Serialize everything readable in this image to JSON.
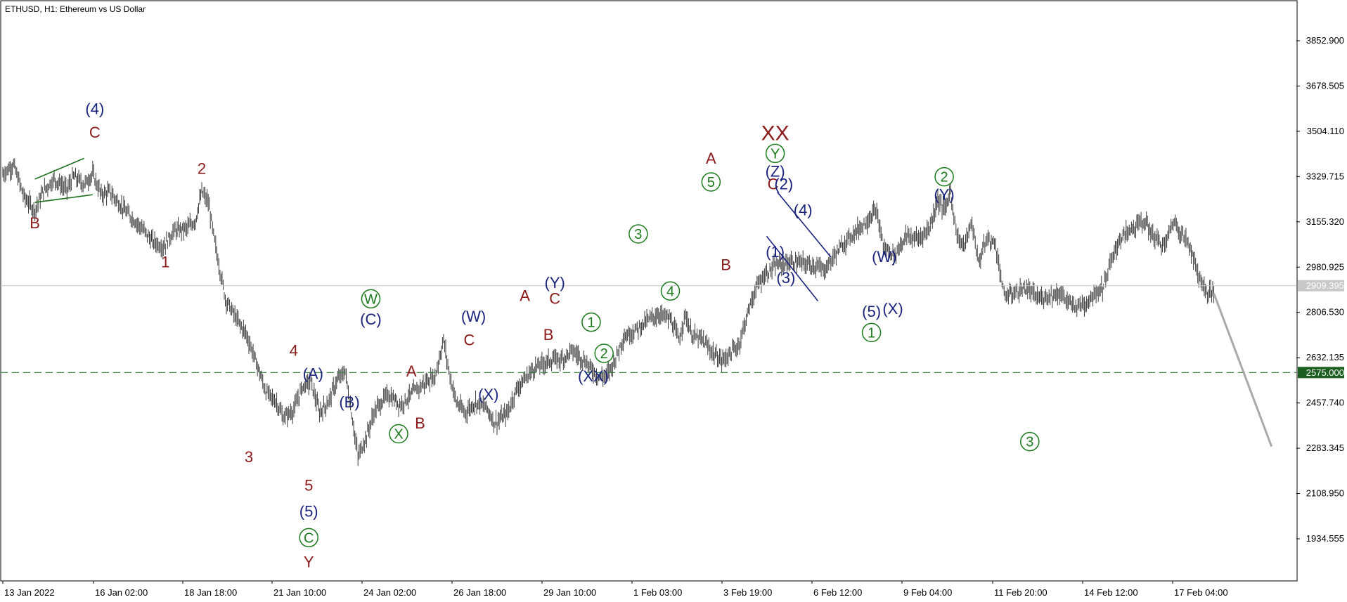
{
  "chart_data": {
    "type": "candlestick",
    "title": "ETHUSD, H1:  Ethereum vs US Dollar",
    "y_ticks": [
      "3852.900",
      "3678.505",
      "3504.110",
      "3329.715",
      "3155.320",
      "2980.925",
      "2806.530",
      "2632.135",
      "2457.740",
      "2283.345",
      "2108.950",
      "1934.555"
    ],
    "ylim": [
      1760,
      3990
    ],
    "x_ticks": [
      "13 Jan 2022",
      "16 Jan 02:00",
      "18 Jan 18:00",
      "21 Jan 10:00",
      "24 Jan 02:00",
      "26 Jan 18:00",
      "29 Jan 10:00",
      "1 Feb 03:00",
      "3 Feb 19:00",
      "6 Feb 12:00",
      "9 Feb 04:00",
      "11 Feb 20:00",
      "14 Feb 12:00",
      "17 Feb 04:00"
    ],
    "current_price": {
      "label": "2909.395",
      "value": 2909.395
    },
    "level_line": {
      "label": "2575.000",
      "value": 2575.0
    },
    "price_path": [
      [
        0,
        3340
      ],
      [
        5,
        3375
      ],
      [
        10,
        3250
      ],
      [
        15,
        3200
      ],
      [
        19,
        3275
      ],
      [
        24,
        3320
      ],
      [
        30,
        3280
      ],
      [
        33,
        3330
      ],
      [
        38,
        3300
      ],
      [
        42,
        3340
      ],
      [
        46,
        3260
      ],
      [
        50,
        3270
      ],
      [
        58,
        3190
      ],
      [
        64,
        3140
      ],
      [
        70,
        3080
      ],
      [
        75,
        3060
      ],
      [
        80,
        3120
      ],
      [
        86,
        3130
      ],
      [
        90,
        3160
      ],
      [
        93,
        3270
      ],
      [
        96,
        3230
      ],
      [
        99,
        3080
      ],
      [
        104,
        2860
      ],
      [
        110,
        2770
      ],
      [
        114,
        2720
      ],
      [
        119,
        2600
      ],
      [
        123,
        2500
      ],
      [
        128,
        2460
      ],
      [
        131,
        2400
      ],
      [
        136,
        2430
      ],
      [
        140,
        2520
      ],
      [
        144,
        2540
      ],
      [
        148,
        2420
      ],
      [
        152,
        2460
      ],
      [
        156,
        2540
      ],
      [
        160,
        2580
      ],
      [
        163,
        2420
      ],
      [
        166,
        2250
      ],
      [
        170,
        2330
      ],
      [
        174,
        2430
      ],
      [
        180,
        2490
      ],
      [
        186,
        2450
      ],
      [
        192,
        2500
      ],
      [
        198,
        2540
      ],
      [
        202,
        2560
      ],
      [
        206,
        2700
      ],
      [
        209,
        2560
      ],
      [
        212,
        2460
      ],
      [
        216,
        2420
      ],
      [
        221,
        2460
      ],
      [
        226,
        2440
      ],
      [
        230,
        2380
      ],
      [
        236,
        2420
      ],
      [
        240,
        2510
      ],
      [
        248,
        2590
      ],
      [
        255,
        2620
      ],
      [
        262,
        2630
      ],
      [
        266,
        2660
      ],
      [
        272,
        2620
      ],
      [
        278,
        2560
      ],
      [
        282,
        2560
      ],
      [
        286,
        2620
      ],
      [
        290,
        2710
      ],
      [
        296,
        2740
      ],
      [
        302,
        2780
      ],
      [
        307,
        2800
      ],
      [
        312,
        2780
      ],
      [
        316,
        2700
      ],
      [
        319,
        2800
      ],
      [
        322,
        2720
      ],
      [
        327,
        2700
      ],
      [
        332,
        2650
      ],
      [
        336,
        2620
      ],
      [
        340,
        2650
      ],
      [
        344,
        2680
      ],
      [
        348,
        2800
      ],
      [
        352,
        2900
      ],
      [
        356,
        2950
      ],
      [
        362,
        2990
      ],
      [
        370,
        3000
      ],
      [
        378,
        2990
      ],
      [
        384,
        2970
      ],
      [
        390,
        3040
      ],
      [
        396,
        3100
      ],
      [
        403,
        3150
      ],
      [
        408,
        3200
      ],
      [
        412,
        3050
      ],
      [
        417,
        3030
      ],
      [
        422,
        3100
      ],
      [
        428,
        3090
      ],
      [
        433,
        3130
      ],
      [
        437,
        3240
      ],
      [
        440,
        3200
      ],
      [
        443,
        3270
      ],
      [
        446,
        3100
      ],
      [
        449,
        3060
      ],
      [
        453,
        3150
      ],
      [
        456,
        3000
      ],
      [
        460,
        3090
      ],
      [
        464,
        3070
      ],
      [
        468,
        2870
      ],
      [
        473,
        2880
      ],
      [
        478,
        2900
      ],
      [
        484,
        2860
      ],
      [
        488,
        2870
      ],
      [
        494,
        2880
      ],
      [
        500,
        2830
      ],
      [
        506,
        2840
      ],
      [
        510,
        2880
      ],
      [
        514,
        2900
      ],
      [
        518,
        3000
      ],
      [
        522,
        3090
      ],
      [
        528,
        3130
      ],
      [
        533,
        3160
      ],
      [
        538,
        3100
      ],
      [
        543,
        3060
      ],
      [
        547,
        3160
      ],
      [
        551,
        3110
      ],
      [
        555,
        3060
      ],
      [
        558,
        2970
      ],
      [
        562,
        2890
      ],
      [
        566,
        2880
      ]
    ],
    "forecast_line": {
      "from": [
        566,
        2880
      ],
      "to": [
        593,
        2290
      ]
    },
    "wave_labels": [
      {
        "text": "B",
        "t": 15,
        "p": 3130,
        "color": "#8b1a1a"
      },
      {
        "text": "(4)",
        "t": 43,
        "p": 3570,
        "color": "#1a237e"
      },
      {
        "text": "C",
        "t": 43,
        "p": 3480,
        "color": "#8b1a1a"
      },
      {
        "text": "2",
        "t": 93,
        "p": 3340,
        "color": "#8b1a1a"
      },
      {
        "text": "1",
        "t": 76,
        "p": 2980,
        "color": "#8b1a1a"
      },
      {
        "text": "3",
        "t": 115,
        "p": 2230,
        "color": "#8b1a1a"
      },
      {
        "text": "4",
        "t": 136,
        "p": 2640,
        "color": "#8b1a1a"
      },
      {
        "text": "5",
        "t": 143,
        "p": 2120,
        "color": "#8b1a1a"
      },
      {
        "text": "(5)",
        "t": 143,
        "p": 2020,
        "color": "#1a237e"
      },
      {
        "text": "C",
        "t": 143,
        "p": 1920,
        "color": "#1b7a1b",
        "circle": true
      },
      {
        "text": "Y",
        "t": 143,
        "p": 1825,
        "color": "#8b1a1a"
      },
      {
        "text": "(A)",
        "t": 145,
        "p": 2550,
        "color": "#1a237e"
      },
      {
        "text": "(B)",
        "t": 162,
        "p": 2440,
        "color": "#1a237e"
      },
      {
        "text": "W",
        "t": 172,
        "p": 2840,
        "color": "#1b7a1b",
        "circle": true
      },
      {
        "text": "(C)",
        "t": 172,
        "p": 2760,
        "color": "#1a237e"
      },
      {
        "text": "X",
        "t": 185,
        "p": 2320,
        "color": "#1b7a1b",
        "circle": true
      },
      {
        "text": "A",
        "t": 191,
        "p": 2560,
        "color": "#8b1a1a"
      },
      {
        "text": "B",
        "t": 195,
        "p": 2360,
        "color": "#8b1a1a"
      },
      {
        "text": "(W)",
        "t": 220,
        "p": 2770,
        "color": "#1a237e"
      },
      {
        "text": "C",
        "t": 218,
        "p": 2680,
        "color": "#8b1a1a"
      },
      {
        "text": "(X)",
        "t": 227,
        "p": 2470,
        "color": "#1a237e"
      },
      {
        "text": "A",
        "t": 244,
        "p": 2850,
        "color": "#8b1a1a"
      },
      {
        "text": "(Y)",
        "t": 258,
        "p": 2900,
        "color": "#1a237e"
      },
      {
        "text": "C",
        "t": 258,
        "p": 2840,
        "color": "#8b1a1a"
      },
      {
        "text": "B",
        "t": 255,
        "p": 2700,
        "color": "#8b1a1a"
      },
      {
        "text": "1",
        "t": 275,
        "p": 2750,
        "color": "#1b7a1b",
        "circle": true
      },
      {
        "text": "2",
        "t": 281,
        "p": 2630,
        "color": "#1b7a1b",
        "circle": true
      },
      {
        "text": "(XX)",
        "t": 276,
        "p": 2540,
        "color": "#1a237e"
      },
      {
        "text": "3",
        "t": 297,
        "p": 3090,
        "color": "#1b7a1b",
        "circle": true
      },
      {
        "text": "4",
        "t": 312,
        "p": 2870,
        "color": "#1b7a1b",
        "circle": true
      },
      {
        "text": "A",
        "t": 331,
        "p": 3380,
        "color": "#8b1a1a"
      },
      {
        "text": "5",
        "t": 331,
        "p": 3290,
        "color": "#1b7a1b",
        "circle": true
      },
      {
        "text": "B",
        "t": 338,
        "p": 2970,
        "color": "#8b1a1a"
      },
      {
        "text": "XX",
        "t": 361,
        "p": 3470,
        "color": "#8b1a1a",
        "big": true
      },
      {
        "text": "Y",
        "t": 361,
        "p": 3400,
        "color": "#1b7a1b",
        "circle": true
      },
      {
        "text": "(Z)",
        "t": 361,
        "p": 3330,
        "color": "#1a237e"
      },
      {
        "text": "C",
        "t": 360,
        "p": 3280,
        "color": "#8b1a1a"
      },
      {
        "text": "(2)",
        "t": 365,
        "p": 3280,
        "color": "#1a237e"
      },
      {
        "text": "(4)",
        "t": 374,
        "p": 3180,
        "color": "#1a237e"
      },
      {
        "text": "(1)",
        "t": 361,
        "p": 3020,
        "color": "#1a237e"
      },
      {
        "text": "(3)",
        "t": 366,
        "p": 2920,
        "color": "#1a237e"
      },
      {
        "text": "(W)",
        "t": 412,
        "p": 3000,
        "color": "#1a237e"
      },
      {
        "text": "(5)",
        "t": 406,
        "p": 2790,
        "color": "#1a237e"
      },
      {
        "text": "1",
        "t": 406,
        "p": 2710,
        "color": "#1b7a1b",
        "circle": true
      },
      {
        "text": "(X)",
        "t": 416,
        "p": 2800,
        "color": "#1a237e"
      },
      {
        "text": "2",
        "t": 440,
        "p": 3310,
        "color": "#1b7a1b",
        "circle": true
      },
      {
        "text": "(Y)",
        "t": 440,
        "p": 3240,
        "color": "#1a237e"
      },
      {
        "text": "3",
        "t": 480,
        "p": 2290,
        "color": "#1b7a1b",
        "circle": true
      }
    ],
    "trend_lines": [
      {
        "from": [
          15,
          3320
        ],
        "to": [
          38,
          3400
        ],
        "color": "#1b6e1b"
      },
      {
        "from": [
          15,
          3230
        ],
        "to": [
          42,
          3260
        ],
        "color": "#1b6e1b"
      },
      {
        "from": [
          362,
          3270
        ],
        "to": [
          387,
          3020
        ],
        "color": "#1a237e"
      },
      {
        "from": [
          357,
          3100
        ],
        "to": [
          381,
          2850
        ],
        "color": "#1a237e"
      }
    ]
  }
}
